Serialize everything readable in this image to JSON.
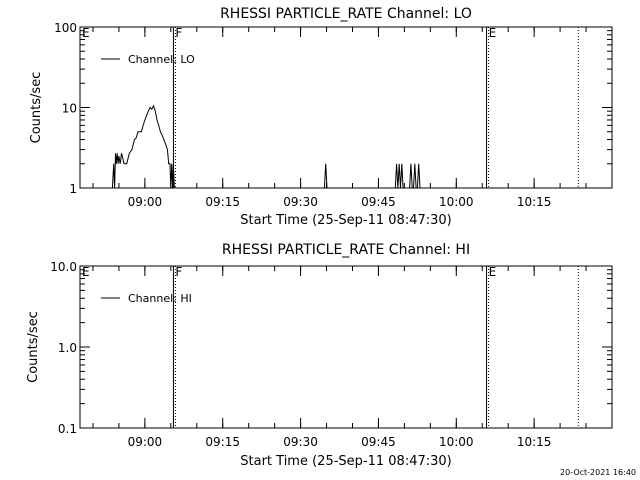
{
  "chart_data": [
    {
      "type": "line",
      "title": "RHESSI PARTICLE_RATE Channel: LO",
      "xlabel": "Start Time (25-Sep-11 08:47:30)",
      "ylabel": "Counts/sec",
      "yscale": "log",
      "ylim": [
        1,
        100
      ],
      "yticks": [
        "1",
        "10",
        "100"
      ],
      "xlim": [
        "08:47:30",
        "10:30:00"
      ],
      "xticks": [
        "09:00",
        "09:15",
        "09:30",
        "09:45",
        "10:00",
        "10:15"
      ],
      "legend": {
        "position": "top-left"
      },
      "markers": [
        {
          "label": "E",
          "time": "08:47:30",
          "style": "dotted"
        },
        {
          "label": "F",
          "time": "09:05:30",
          "style": "solid"
        },
        {
          "label": "E",
          "time": "10:05:50",
          "style": "solid"
        },
        {
          "label": "",
          "time": "10:23:30",
          "style": "dotted"
        }
      ],
      "series": [
        {
          "name": "Channel: LO",
          "x": [
            "08:53:30",
            "08:53:45",
            "08:54:00",
            "08:54:10",
            "08:54:20",
            "08:54:30",
            "08:54:40",
            "08:54:50",
            "08:55:00",
            "08:55:15",
            "08:55:30",
            "08:56:00",
            "08:56:30",
            "08:57:00",
            "08:57:30",
            "08:58:00",
            "08:58:20",
            "08:58:40",
            "08:59:00",
            "08:59:20",
            "08:59:40",
            "09:00:00",
            "09:00:20",
            "09:00:40",
            "09:01:00",
            "09:01:20",
            "09:01:40",
            "09:02:00",
            "09:02:20",
            "09:02:40",
            "09:03:00",
            "09:03:20",
            "09:03:40",
            "09:04:00",
            "09:04:20",
            "09:04:35",
            "09:04:50",
            "09:05:00",
            "09:05:10",
            "09:05:20",
            "09:05:30",
            "09:05:40",
            "09:05:50",
            "09:06:00",
            "09:34:20",
            "09:34:35",
            "09:34:50",
            "09:35:05",
            "09:35:20",
            "09:48:00",
            "09:48:15",
            "09:48:30",
            "09:48:45",
            "09:49:00",
            "09:49:15",
            "09:49:30",
            "09:49:45",
            "09:50:00",
            "09:50:15",
            "09:50:30",
            "09:51:00",
            "09:51:15",
            "09:51:30",
            "09:51:45",
            "09:52:00",
            "09:52:15",
            "09:52:30",
            "09:52:45",
            "09:53:00",
            "09:53:15"
          ],
          "y": [
            1,
            1,
            2,
            1,
            2.7,
            2,
            2.7,
            2,
            2.5,
            2,
            2.7,
            2,
            2,
            2.7,
            3,
            4,
            4.2,
            5,
            5,
            5,
            6,
            7,
            8,
            9,
            10,
            9.5,
            10.5,
            9,
            7,
            6,
            5,
            4.5,
            4,
            3.5,
            3,
            2,
            2,
            1,
            2,
            1,
            2,
            1,
            1,
            1,
            1,
            1,
            2,
            1,
            1,
            1,
            1,
            2,
            1,
            2,
            1,
            2,
            1,
            1,
            1,
            1,
            1,
            2,
            1,
            1,
            2,
            1,
            1,
            2,
            1,
            1
          ]
        }
      ]
    },
    {
      "type": "line",
      "title": "RHESSI PARTICLE_RATE Channel: HI",
      "xlabel": "Start Time (25-Sep-11 08:47:30)",
      "ylabel": "Counts/sec",
      "yscale": "log",
      "ylim": [
        0.1,
        10
      ],
      "yticks": [
        "0.1",
        "1.0",
        "10.0"
      ],
      "xlim": [
        "08:47:30",
        "10:30:00"
      ],
      "xticks": [
        "09:00",
        "09:15",
        "09:30",
        "09:45",
        "10:00",
        "10:15"
      ],
      "legend": {
        "position": "top-left"
      },
      "markers": [
        {
          "label": "E",
          "time": "08:47:30",
          "style": "dotted"
        },
        {
          "label": "F",
          "time": "09:05:30",
          "style": "solid"
        },
        {
          "label": "E",
          "time": "10:05:50",
          "style": "solid"
        },
        {
          "label": "",
          "time": "10:23:30",
          "style": "dotted"
        }
      ],
      "series": [
        {
          "name": "Channel: HI",
          "x": [],
          "y": []
        }
      ]
    }
  ],
  "footer": {
    "stamp": "20-Oct-2021 16:40"
  }
}
